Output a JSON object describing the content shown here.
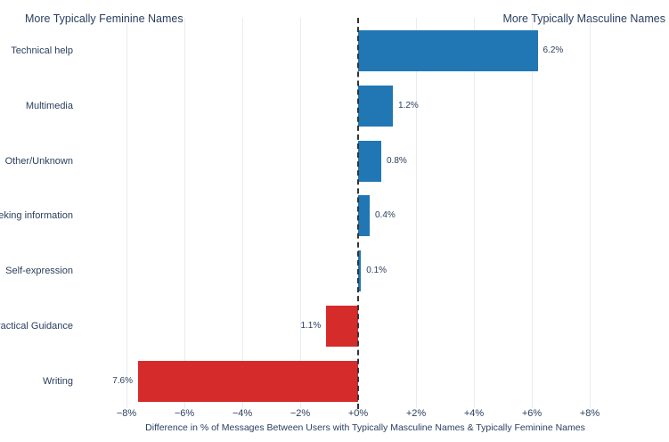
{
  "chart_data": {
    "type": "bar",
    "orientation": "horizontal",
    "title": "",
    "categories": [
      "Technical help",
      "Multimedia",
      "Other/Unknown",
      "Seeking information",
      "Self-expression",
      "Practical Guidance",
      "Writing"
    ],
    "values": [
      6.2,
      1.2,
      0.8,
      0.4,
      0.1,
      -1.1,
      -7.6
    ],
    "bar_value_labels": [
      "6.2%",
      "1.2%",
      "0.8%",
      "0.4%",
      "0.1%",
      "1.1%",
      "7.6%"
    ],
    "x_ticks": [
      {
        "value": -8,
        "label": "−8%"
      },
      {
        "value": -6,
        "label": "−6%"
      },
      {
        "value": -4,
        "label": "−4%"
      },
      {
        "value": -2,
        "label": "−2%"
      },
      {
        "value": 0,
        "label": "+0%"
      },
      {
        "value": 2,
        "label": "+2%"
      },
      {
        "value": 4,
        "label": "+4%"
      },
      {
        "value": 6,
        "label": "+6%"
      },
      {
        "value": 8,
        "label": "+8%"
      }
    ],
    "xlim": [
      -8.6,
      10.7
    ],
    "xlabel": "Difference in % of Messages Between Users with Typically Masculine Names & Typically Feminine Names",
    "grid": true,
    "legend": false,
    "zero_line": {
      "style": "dashed",
      "x": 0
    },
    "annotations": {
      "left": "More Typically Feminine Names",
      "right": "More Typically Masculine Names"
    },
    "colors": {
      "positive_bar": "#2077b4",
      "negative_bar": "#d62b2b",
      "text": "#2a3f5f",
      "grid": "#e9ecf3",
      "zero_line": "#333333"
    }
  }
}
